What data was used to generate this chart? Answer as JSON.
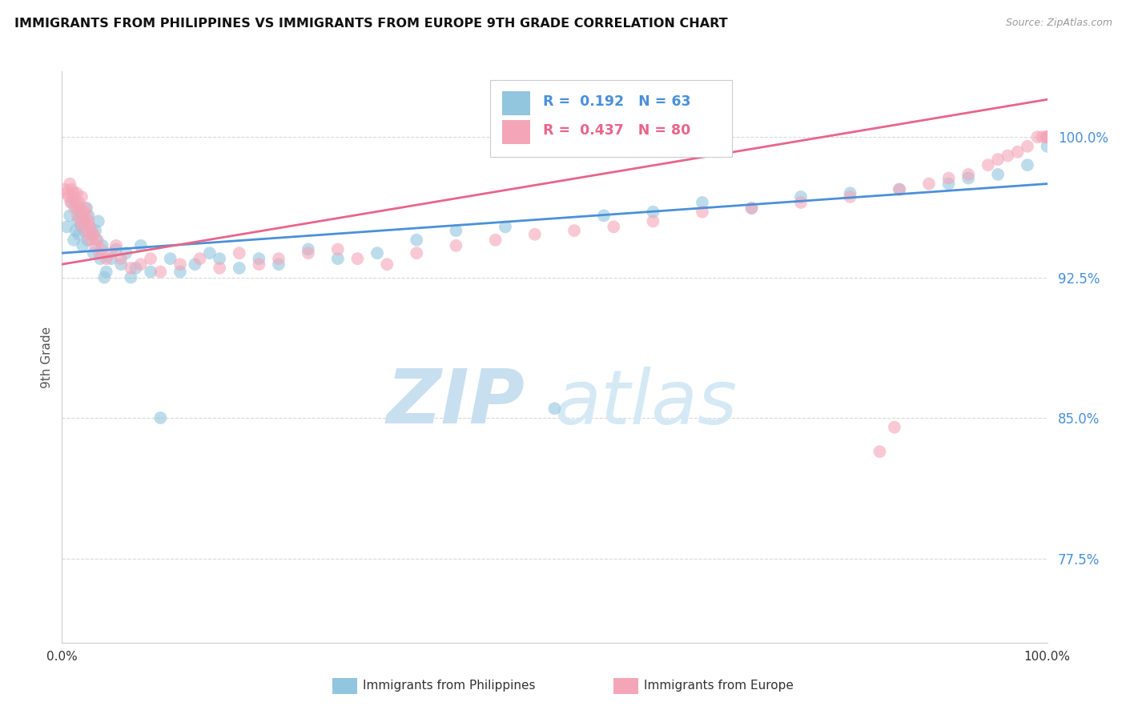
{
  "title": "IMMIGRANTS FROM PHILIPPINES VS IMMIGRANTS FROM EUROPE 9TH GRADE CORRELATION CHART",
  "source": "Source: ZipAtlas.com",
  "ylabel": "9th Grade",
  "yticks": [
    77.5,
    85.0,
    92.5,
    100.0
  ],
  "ytick_labels": [
    "77.5%",
    "85.0%",
    "92.5%",
    "100.0%"
  ],
  "xlim": [
    0.0,
    100.0
  ],
  "ylim": [
    73.0,
    103.5
  ],
  "blue_R": 0.192,
  "blue_N": 63,
  "pink_R": 0.437,
  "pink_N": 80,
  "blue_color": "#92c5de",
  "pink_color": "#f4a6b8",
  "blue_line_color": "#4a90d9",
  "pink_line_color": "#e8658a",
  "legend_label_blue": "Immigrants from Philippines",
  "legend_label_pink": "Immigrants from Europe",
  "blue_points_x": [
    0.5,
    0.8,
    1.0,
    1.2,
    1.4,
    1.5,
    1.6,
    1.7,
    1.8,
    1.9,
    2.0,
    2.1,
    2.2,
    2.3,
    2.5,
    2.6,
    2.7,
    2.8,
    3.0,
    3.2,
    3.4,
    3.5,
    3.7,
    3.9,
    4.1,
    4.3,
    4.5,
    5.0,
    5.5,
    6.0,
    6.5,
    7.0,
    7.5,
    8.0,
    9.0,
    10.0,
    11.0,
    12.0,
    13.5,
    15.0,
    16.0,
    18.0,
    20.0,
    22.0,
    25.0,
    28.0,
    32.0,
    36.0,
    40.0,
    45.0,
    50.0,
    55.0,
    60.0,
    65.0,
    70.0,
    75.0,
    80.0,
    85.0,
    90.0,
    92.0,
    95.0,
    98.0,
    100.0
  ],
  "blue_points_y": [
    95.2,
    95.8,
    96.5,
    94.5,
    95.0,
    96.2,
    95.5,
    94.8,
    96.0,
    95.3,
    95.8,
    94.2,
    95.5,
    95.0,
    96.2,
    94.5,
    95.8,
    95.2,
    94.8,
    93.8,
    95.0,
    94.5,
    95.5,
    93.5,
    94.2,
    92.5,
    92.8,
    93.5,
    94.0,
    93.2,
    93.8,
    92.5,
    93.0,
    94.2,
    92.8,
    85.0,
    93.5,
    92.8,
    93.2,
    93.8,
    93.5,
    93.0,
    93.5,
    93.2,
    94.0,
    93.5,
    93.8,
    94.5,
    95.0,
    95.2,
    85.5,
    95.8,
    96.0,
    96.5,
    96.2,
    96.8,
    97.0,
    97.2,
    97.5,
    97.8,
    98.0,
    98.5,
    99.5
  ],
  "pink_points_x": [
    0.3,
    0.5,
    0.7,
    0.8,
    0.9,
    1.0,
    1.1,
    1.2,
    1.3,
    1.4,
    1.5,
    1.6,
    1.7,
    1.8,
    1.9,
    2.0,
    2.1,
    2.2,
    2.3,
    2.4,
    2.5,
    2.6,
    2.7,
    2.8,
    2.9,
    3.0,
    3.2,
    3.4,
    3.6,
    3.8,
    4.0,
    4.5,
    5.0,
    5.5,
    6.0,
    7.0,
    8.0,
    9.0,
    10.0,
    12.0,
    14.0,
    16.0,
    18.0,
    20.0,
    22.0,
    25.0,
    28.0,
    30.0,
    33.0,
    36.0,
    40.0,
    44.0,
    48.0,
    52.0,
    56.0,
    60.0,
    65.0,
    70.0,
    75.0,
    80.0,
    85.0,
    88.0,
    90.0,
    92.0,
    94.0,
    95.0,
    96.0,
    97.0,
    98.0,
    99.0,
    99.5,
    100.0,
    100.0,
    100.0,
    100.0,
    100.0,
    100.0,
    100.0,
    84.5,
    83.0
  ],
  "pink_points_y": [
    97.2,
    97.0,
    96.8,
    97.5,
    96.5,
    97.2,
    96.8,
    97.0,
    96.2,
    96.5,
    97.0,
    95.8,
    96.5,
    96.2,
    95.5,
    96.8,
    95.2,
    96.0,
    95.5,
    96.2,
    95.8,
    94.8,
    95.5,
    95.2,
    94.5,
    95.0,
    94.8,
    94.2,
    94.5,
    93.8,
    94.0,
    93.5,
    93.8,
    94.2,
    93.5,
    93.0,
    93.2,
    93.5,
    92.8,
    93.2,
    93.5,
    93.0,
    93.8,
    93.2,
    93.5,
    93.8,
    94.0,
    93.5,
    93.2,
    93.8,
    94.2,
    94.5,
    94.8,
    95.0,
    95.2,
    95.5,
    96.0,
    96.2,
    96.5,
    96.8,
    97.2,
    97.5,
    97.8,
    98.0,
    98.5,
    98.8,
    99.0,
    99.2,
    99.5,
    100.0,
    100.0,
    100.0,
    100.0,
    100.0,
    100.0,
    100.0,
    100.0,
    100.0,
    84.5,
    83.2
  ],
  "blue_line_x0": 0.0,
  "blue_line_x1": 100.0,
  "blue_line_y0": 93.8,
  "blue_line_y1": 97.5,
  "pink_line_x0": 0.0,
  "pink_line_x1": 100.0,
  "pink_line_y0": 93.2,
  "pink_line_y1": 102.0,
  "watermark_zip": "ZIP",
  "watermark_atlas": "atlas",
  "watermark_color": "#cde8f8",
  "background_color": "#ffffff",
  "grid_color": "#d8d8d8",
  "spine_color": "#cccccc"
}
